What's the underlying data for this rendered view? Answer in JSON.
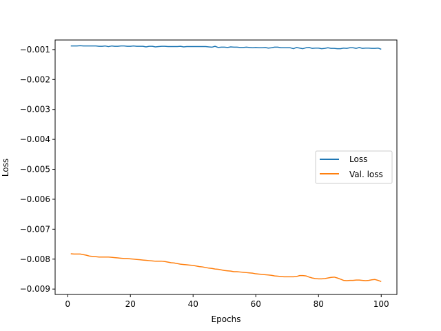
{
  "chart_data": {
    "type": "line",
    "title": "",
    "xlabel": "Epochs",
    "ylabel": "Loss",
    "xlim": [
      -4,
      105
    ],
    "ylim": [
      -0.00918,
      -0.00068
    ],
    "xticks": [
      0,
      20,
      40,
      60,
      80,
      100
    ],
    "xtick_labels": [
      "0",
      "20",
      "40",
      "60",
      "80",
      "100"
    ],
    "yticks": [
      -0.001,
      -0.002,
      -0.003,
      -0.004,
      -0.005,
      -0.006,
      -0.007,
      -0.008,
      -0.009
    ],
    "ytick_labels": [
      "−0.001",
      "−0.002",
      "−0.003",
      "−0.004",
      "−0.005",
      "−0.006",
      "−0.007",
      "−0.008",
      "−0.009"
    ],
    "grid": false,
    "legend_position": "center-right",
    "x": [
      1,
      2,
      3,
      4,
      5,
      6,
      7,
      8,
      9,
      10,
      11,
      12,
      13,
      14,
      15,
      16,
      17,
      18,
      19,
      20,
      21,
      22,
      23,
      24,
      25,
      26,
      27,
      28,
      29,
      30,
      31,
      32,
      33,
      34,
      35,
      36,
      37,
      38,
      39,
      40,
      41,
      42,
      43,
      44,
      45,
      46,
      47,
      48,
      49,
      50,
      51,
      52,
      53,
      54,
      55,
      56,
      57,
      58,
      59,
      60,
      61,
      62,
      63,
      64,
      65,
      66,
      67,
      68,
      69,
      70,
      71,
      72,
      73,
      74,
      75,
      76,
      77,
      78,
      79,
      80,
      81,
      82,
      83,
      84,
      85,
      86,
      87,
      88,
      89,
      90,
      91,
      92,
      93,
      94,
      95,
      96,
      97,
      98,
      99,
      100
    ],
    "series": [
      {
        "name": "Loss",
        "color": "#1f77b4",
        "values": [
          -0.00088,
          -0.00088,
          -0.00088,
          -0.00087,
          -0.00088,
          -0.00088,
          -0.00088,
          -0.00088,
          -0.00088,
          -0.00089,
          -0.00089,
          -0.00088,
          -0.0009,
          -0.00088,
          -0.00089,
          -0.00089,
          -0.00088,
          -0.00088,
          -0.00089,
          -0.00089,
          -0.00088,
          -0.00089,
          -0.00089,
          -0.00089,
          -0.00091,
          -0.00089,
          -0.00089,
          -0.00091,
          -0.0009,
          -0.00089,
          -0.00089,
          -0.0009,
          -0.0009,
          -0.0009,
          -0.0009,
          -0.00089,
          -0.00091,
          -0.0009,
          -0.0009,
          -0.0009,
          -0.0009,
          -0.0009,
          -0.0009,
          -0.0009,
          -0.00091,
          -0.00092,
          -0.00089,
          -0.00093,
          -0.00092,
          -0.00092,
          -0.00093,
          -0.00091,
          -0.00092,
          -0.00092,
          -0.00093,
          -0.00093,
          -0.00092,
          -0.00093,
          -0.00094,
          -0.00093,
          -0.00094,
          -0.00094,
          -0.00093,
          -0.00095,
          -0.00094,
          -0.00092,
          -0.00092,
          -0.00094,
          -0.00094,
          -0.00094,
          -0.00094,
          -0.00097,
          -0.00093,
          -0.00095,
          -0.00097,
          -0.00094,
          -0.00093,
          -0.00096,
          -0.00095,
          -0.00095,
          -0.00097,
          -0.00096,
          -0.00094,
          -0.00096,
          -0.00096,
          -0.00097,
          -0.00097,
          -0.00095,
          -0.00096,
          -0.00094,
          -0.00094,
          -0.00096,
          -0.00093,
          -0.00096,
          -0.00095,
          -0.00095,
          -0.00096,
          -0.00096,
          -0.00095,
          -0.00099
        ]
      },
      {
        "name": "Val. loss",
        "color": "#ff7f0e",
        "values": [
          -0.00782,
          -0.00783,
          -0.00783,
          -0.00783,
          -0.00785,
          -0.00787,
          -0.0079,
          -0.00791,
          -0.00792,
          -0.00793,
          -0.00793,
          -0.00793,
          -0.00793,
          -0.00794,
          -0.00795,
          -0.00796,
          -0.00797,
          -0.00798,
          -0.00798,
          -0.00799,
          -0.008,
          -0.00801,
          -0.00802,
          -0.00803,
          -0.00804,
          -0.00805,
          -0.00806,
          -0.00807,
          -0.00807,
          -0.00807,
          -0.00808,
          -0.0081,
          -0.00812,
          -0.00813,
          -0.00815,
          -0.00817,
          -0.00818,
          -0.00819,
          -0.0082,
          -0.00821,
          -0.00823,
          -0.00825,
          -0.00826,
          -0.00828,
          -0.0083,
          -0.00831,
          -0.00833,
          -0.00834,
          -0.00836,
          -0.00838,
          -0.00839,
          -0.0084,
          -0.00842,
          -0.00842,
          -0.00843,
          -0.00844,
          -0.00845,
          -0.00846,
          -0.00847,
          -0.00849,
          -0.0085,
          -0.00851,
          -0.00852,
          -0.00853,
          -0.00854,
          -0.00856,
          -0.00857,
          -0.00858,
          -0.00859,
          -0.00859,
          -0.00859,
          -0.00859,
          -0.00858,
          -0.00855,
          -0.00855,
          -0.00856,
          -0.0086,
          -0.00863,
          -0.00865,
          -0.00866,
          -0.00866,
          -0.00865,
          -0.00863,
          -0.00861,
          -0.0086,
          -0.00863,
          -0.00867,
          -0.00871,
          -0.00872,
          -0.00871,
          -0.00871,
          -0.0087,
          -0.0087,
          -0.00871,
          -0.00872,
          -0.00871,
          -0.00869,
          -0.00868,
          -0.00871,
          -0.00875
        ]
      }
    ]
  }
}
